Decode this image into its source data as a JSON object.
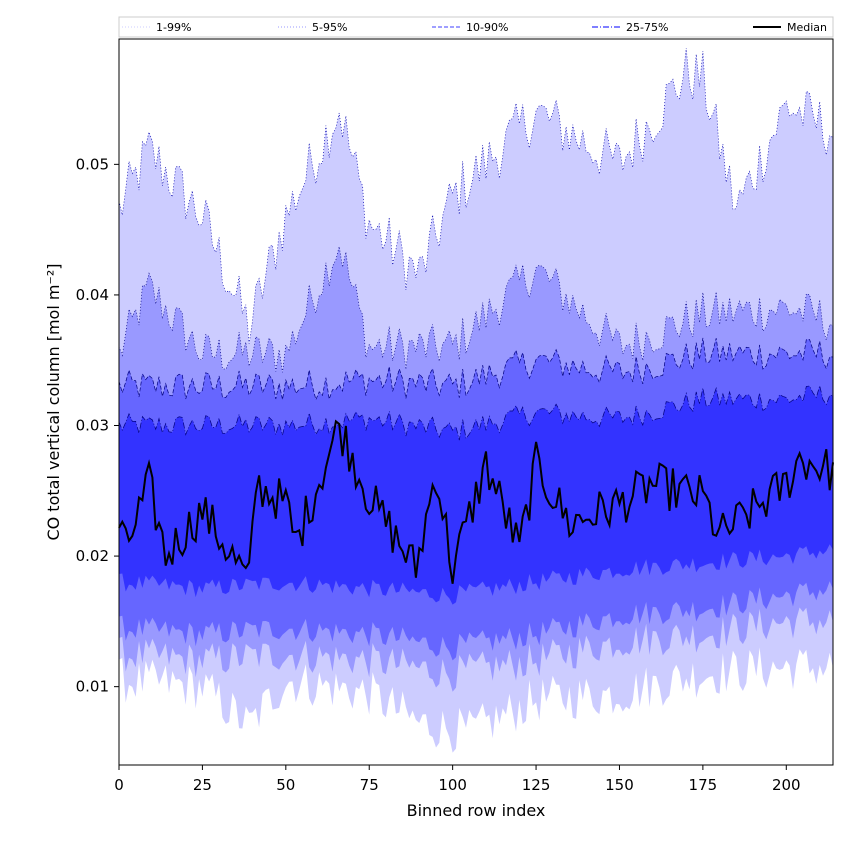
{
  "chart_data": {
    "type": "area",
    "xlabel": "Binned row index",
    "ylabel": "CO total vertical column [mol m⁻²]",
    "xlim": [
      0,
      214
    ],
    "ylim": [
      0.004,
      0.0596
    ],
    "x_ticks": [
      0,
      25,
      50,
      75,
      100,
      125,
      150,
      175,
      200
    ],
    "x_tick_labels": [
      "0",
      "25",
      "50",
      "75",
      "100",
      "125",
      "150",
      "175",
      "200"
    ],
    "y_ticks": [
      0.01,
      0.02,
      0.03,
      0.04,
      0.05
    ],
    "y_tick_labels": [
      "0.01",
      "0.02",
      "0.03",
      "0.04",
      "0.05"
    ],
    "grid": false,
    "legend_position": "top",
    "x_range": {
      "start": 0,
      "end": 214,
      "points": 215
    },
    "series": [
      {
        "name": "1-99%",
        "style": "dotted",
        "color": "#ccccff",
        "band": "outer",
        "lower_keypoints": [
          [
            0,
            0.0105
          ],
          [
            25,
            0.01
          ],
          [
            39,
            0.007
          ],
          [
            50,
            0.0105
          ],
          [
            75,
            0.0095
          ],
          [
            90,
            0.0072
          ],
          [
            105,
            0.0065
          ],
          [
            125,
            0.009
          ],
          [
            150,
            0.0095
          ],
          [
            175,
            0.011
          ],
          [
            200,
            0.0115
          ],
          [
            214,
            0.0115
          ]
        ],
        "upper_keypoints": [
          [
            0,
            0.0465
          ],
          [
            9,
            0.051
          ],
          [
            25,
            0.046
          ],
          [
            39,
            0.0375
          ],
          [
            50,
            0.046
          ],
          [
            66,
            0.0543
          ],
          [
            75,
            0.0455
          ],
          [
            90,
            0.0415
          ],
          [
            100,
            0.0475
          ],
          [
            125,
            0.054
          ],
          [
            150,
            0.05
          ],
          [
            170,
            0.057
          ],
          [
            175,
            0.0565
          ],
          [
            185,
            0.0465
          ],
          [
            200,
            0.0545
          ],
          [
            214,
            0.0525
          ]
        ]
      },
      {
        "name": "5-95%",
        "style": "dotted",
        "color": "#9999ff",
        "band": "second",
        "lower_keypoints": [
          [
            0,
            0.0125
          ],
          [
            25,
            0.012
          ],
          [
            50,
            0.0125
          ],
          [
            75,
            0.012
          ],
          [
            100,
            0.011
          ],
          [
            125,
            0.012
          ],
          [
            150,
            0.0135
          ],
          [
            175,
            0.014
          ],
          [
            200,
            0.015
          ],
          [
            214,
            0.015
          ]
        ],
        "upper_keypoints": [
          [
            0,
            0.0355
          ],
          [
            9,
            0.0405
          ],
          [
            25,
            0.0355
          ],
          [
            50,
            0.0355
          ],
          [
            66,
            0.044
          ],
          [
            75,
            0.036
          ],
          [
            100,
            0.036
          ],
          [
            125,
            0.042
          ],
          [
            150,
            0.036
          ],
          [
            175,
            0.0385
          ],
          [
            200,
            0.039
          ],
          [
            214,
            0.038
          ]
        ]
      },
      {
        "name": "10-90%",
        "style": "dashed",
        "color": "#6666ff",
        "band": "third",
        "lower_keypoints": [
          [
            0,
            0.0145
          ],
          [
            25,
            0.014
          ],
          [
            50,
            0.0145
          ],
          [
            75,
            0.014
          ],
          [
            100,
            0.013
          ],
          [
            125,
            0.014
          ],
          [
            150,
            0.0155
          ],
          [
            175,
            0.016
          ],
          [
            200,
            0.017
          ],
          [
            214,
            0.0175
          ]
        ],
        "upper_keypoints": [
          [
            0,
            0.033
          ],
          [
            25,
            0.033
          ],
          [
            50,
            0.033
          ],
          [
            75,
            0.0335
          ],
          [
            100,
            0.033
          ],
          [
            125,
            0.035
          ],
          [
            150,
            0.034
          ],
          [
            175,
            0.0355
          ],
          [
            200,
            0.0355
          ],
          [
            214,
            0.0355
          ]
        ]
      },
      {
        "name": "25-75%",
        "style": "dashdot",
        "color": "#3333ff",
        "band": "inner",
        "lower_keypoints": [
          [
            0,
            0.018
          ],
          [
            25,
            0.0175
          ],
          [
            50,
            0.018
          ],
          [
            75,
            0.0175
          ],
          [
            100,
            0.017
          ],
          [
            125,
            0.018
          ],
          [
            150,
            0.019
          ],
          [
            175,
            0.0195
          ],
          [
            200,
            0.02
          ],
          [
            214,
            0.0205
          ]
        ],
        "upper_keypoints": [
          [
            0,
            0.03
          ],
          [
            25,
            0.03
          ],
          [
            50,
            0.03
          ],
          [
            75,
            0.0305
          ],
          [
            100,
            0.0295
          ],
          [
            125,
            0.031
          ],
          [
            150,
            0.0305
          ],
          [
            175,
            0.032
          ],
          [
            200,
            0.032
          ],
          [
            214,
            0.0325
          ]
        ]
      },
      {
        "name": "Median",
        "style": "solid",
        "color": "#000000",
        "band": "line",
        "keypoints": [
          [
            0,
            0.0225
          ],
          [
            2,
            0.0205
          ],
          [
            9,
            0.0255
          ],
          [
            14,
            0.02
          ],
          [
            25,
            0.0235
          ],
          [
            39,
            0.018
          ],
          [
            41,
            0.0255
          ],
          [
            50,
            0.024
          ],
          [
            53,
            0.021
          ],
          [
            66,
            0.03
          ],
          [
            75,
            0.0245
          ],
          [
            89,
            0.019
          ],
          [
            95,
            0.0265
          ],
          [
            100,
            0.019
          ],
          [
            110,
            0.027
          ],
          [
            120,
            0.0205
          ],
          [
            125,
            0.027
          ],
          [
            135,
            0.0225
          ],
          [
            150,
            0.024
          ],
          [
            160,
            0.0255
          ],
          [
            175,
            0.0245
          ],
          [
            180,
            0.0215
          ],
          [
            200,
            0.0255
          ],
          [
            204,
            0.0275
          ],
          [
            214,
            0.0265
          ]
        ]
      }
    ]
  }
}
